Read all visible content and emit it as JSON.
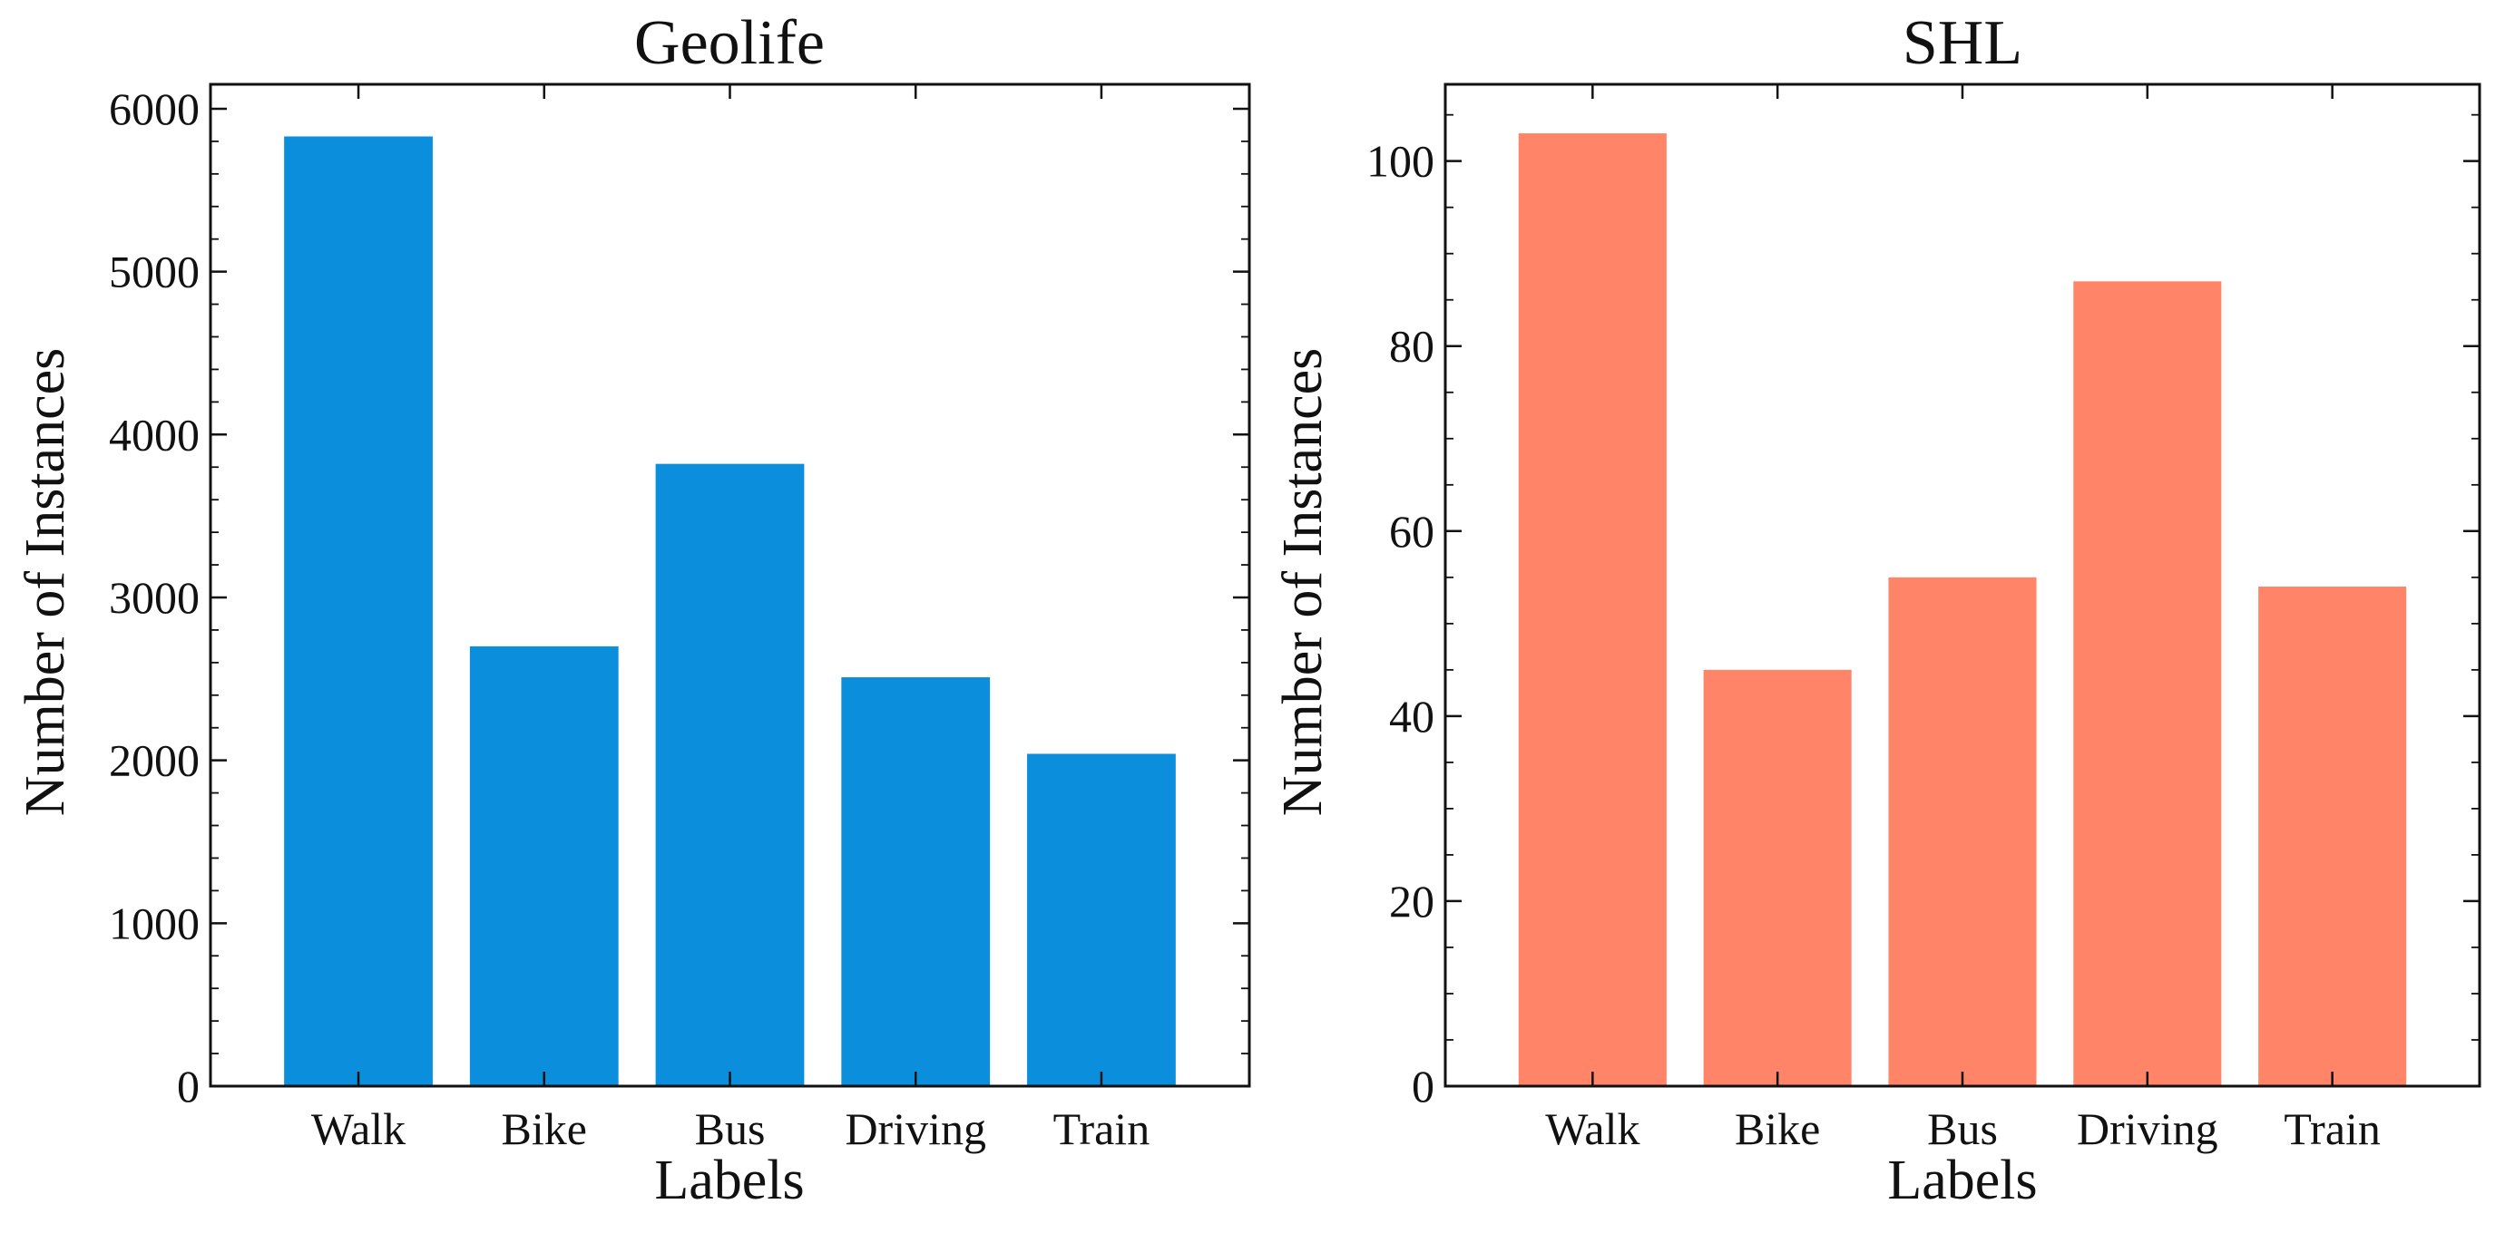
{
  "chart_data": [
    {
      "type": "bar",
      "title": "Geolife",
      "xlabel": "Labels",
      "ylabel": "Number of Instances",
      "categories": [
        "Walk",
        "Bike",
        "Bus",
        "Driving",
        "Train"
      ],
      "values": [
        5830,
        2700,
        3820,
        2510,
        2040
      ],
      "ylim": [
        0,
        6150
      ],
      "yticks": [
        0,
        1000,
        2000,
        3000,
        4000,
        5000,
        6000
      ],
      "yminor_step": 200,
      "color": "#0b8fdc"
    },
    {
      "type": "bar",
      "title": "SHL",
      "xlabel": "Labels",
      "ylabel": "Number of Instances",
      "categories": [
        "Walk",
        "Bike",
        "Bus",
        "Driving",
        "Train"
      ],
      "values": [
        103,
        45,
        55,
        87,
        54
      ],
      "ylim": [
        0,
        108.3
      ],
      "yticks": [
        0,
        20,
        40,
        60,
        80,
        100
      ],
      "yminor_step": 5,
      "color": "#ff8468"
    }
  ]
}
